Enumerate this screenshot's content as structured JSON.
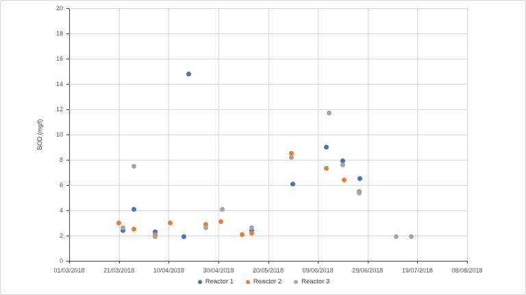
{
  "chart_data": {
    "type": "scatter",
    "ylabel": "BOD (mg/l)",
    "xlabel": "",
    "ylim": [
      0,
      20
    ],
    "ytick_step": 2,
    "grid": true,
    "legend_position": "bottom",
    "x_tick_labels": [
      "01/03/2018",
      "21/03/2018",
      "10/04/2018",
      "30/04/2018",
      "20/05/2018",
      "09/06/2018",
      "29/06/2018",
      "19/07/2018",
      "08/08/2018"
    ],
    "x_range_days": [
      0,
      160
    ],
    "x_tick_interval_days": 20,
    "series": [
      {
        "name": "Reactor 1",
        "color": "#4472c4",
        "points": [
          {
            "date": "22/03/2018",
            "day": 21.5,
            "value": 2.4
          },
          {
            "date": "27/03/2018",
            "day": 26,
            "value": 4.1
          },
          {
            "date": "05/04/2018",
            "day": 34.5,
            "value": 2.3
          },
          {
            "date": "16/04/2018",
            "day": 46,
            "value": 1.9
          },
          {
            "date": "18/04/2018",
            "day": 48,
            "value": 14.8
          },
          {
            "date": "13/05/2018",
            "day": 73.5,
            "value": 2.4
          },
          {
            "date": "30/05/2018",
            "day": 90,
            "value": 6.1
          },
          {
            "date": "12/06/2018",
            "day": 103.5,
            "value": 9.0
          },
          {
            "date": "19/06/2018",
            "day": 110,
            "value": 7.9
          },
          {
            "date": "25/06/2018",
            "day": 117,
            "value": 6.5
          }
        ]
      },
      {
        "name": "Reactor 2",
        "color": "#ed7d31",
        "points": [
          {
            "date": "21/03/2018",
            "day": 20,
            "value": 3.0
          },
          {
            "date": "27/03/2018",
            "day": 26,
            "value": 2.5
          },
          {
            "date": "05/04/2018",
            "day": 34.5,
            "value": 2.1
          },
          {
            "date": "10/04/2018",
            "day": 40.5,
            "value": 3.0
          },
          {
            "date": "25/04/2018",
            "day": 55,
            "value": 2.9
          },
          {
            "date": "01/05/2018",
            "day": 61,
            "value": 3.1
          },
          {
            "date": "10/05/2018",
            "day": 69.5,
            "value": 2.1
          },
          {
            "date": "13/05/2018",
            "day": 73.5,
            "value": 2.2
          },
          {
            "date": "30/05/2018",
            "day": 89.5,
            "value": 8.5
          },
          {
            "date": "12/06/2018",
            "day": 103.5,
            "value": 7.3
          },
          {
            "date": "19/06/2018",
            "day": 110.5,
            "value": 6.4
          },
          {
            "date": "25/06/2018",
            "day": 116.5,
            "value": 5.5
          }
        ]
      },
      {
        "name": "Reactor 3",
        "color": "#a5a5a5",
        "points": [
          {
            "date": "22/03/2018",
            "day": 21.5,
            "value": 2.6
          },
          {
            "date": "27/03/2018",
            "day": 26,
            "value": 7.5
          },
          {
            "date": "05/04/2018",
            "day": 34.5,
            "value": 1.9
          },
          {
            "date": "25/04/2018",
            "day": 55,
            "value": 2.6
          },
          {
            "date": "02/05/2018",
            "day": 61.5,
            "value": 4.1
          },
          {
            "date": "13/05/2018",
            "day": 73.5,
            "value": 2.6
          },
          {
            "date": "30/05/2018",
            "day": 89.5,
            "value": 8.2
          },
          {
            "date": "13/06/2018",
            "day": 104.5,
            "value": 11.7
          },
          {
            "date": "19/06/2018",
            "day": 110,
            "value": 7.6
          },
          {
            "date": "25/06/2018",
            "day": 116.5,
            "value": 5.4
          },
          {
            "date": "10/07/2018",
            "day": 131.5,
            "value": 1.9
          },
          {
            "date": "16/07/2018",
            "day": 137.5,
            "value": 1.9
          }
        ]
      }
    ]
  }
}
